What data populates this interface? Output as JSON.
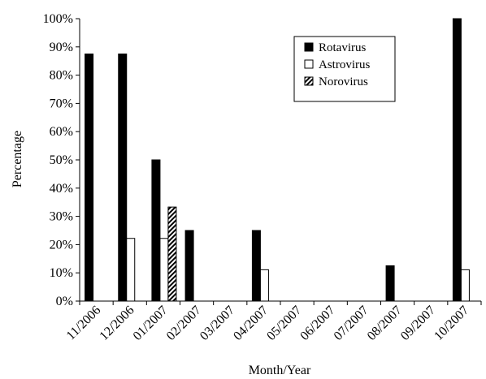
{
  "chart_data": {
    "type": "bar",
    "xlabel": "Month/Year",
    "ylabel": "Percentage",
    "ylim": [
      0,
      100
    ],
    "yticks": [
      "0%",
      "10%",
      "20%",
      "30%",
      "40%",
      "50%",
      "60%",
      "70%",
      "80%",
      "90%",
      "100%"
    ],
    "grid": false,
    "legend_position": "top-right",
    "categories": [
      "11/2006",
      "12/2006",
      "01/2007",
      "02/2007",
      "03/2007",
      "04/2007",
      "05/2007",
      "06/2007",
      "07/2007",
      "08/2007",
      "09/2007",
      "10/2007"
    ],
    "series": [
      {
        "name": "Rotavirus",
        "fill": "#000000",
        "pattern": "solid",
        "values": [
          87.5,
          87.5,
          50,
          25,
          0,
          25,
          0,
          0,
          0,
          12.5,
          0,
          100
        ]
      },
      {
        "name": "Astrovirus",
        "fill": "#ffffff",
        "pattern": "outline",
        "values": [
          0,
          22.2,
          22.2,
          0,
          0,
          11.1,
          0,
          0,
          0,
          0,
          0,
          11.1
        ]
      },
      {
        "name": "Norovirus",
        "fill": "#000000",
        "pattern": "hatched",
        "values": [
          0,
          0,
          33.3,
          0,
          0,
          0,
          0,
          0,
          0,
          0,
          0,
          0
        ]
      }
    ]
  }
}
